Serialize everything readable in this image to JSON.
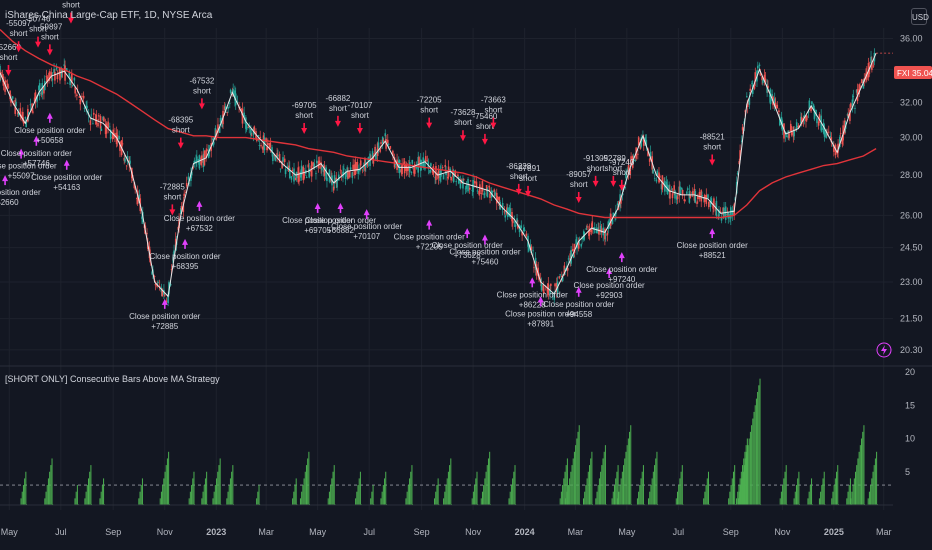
{
  "header": {
    "title": "iShares China Large-Cap ETF, 1D, NYSE Arca",
    "currency": "USD"
  },
  "indicator": {
    "title": "[SHORT ONLY] Consecutive Bars Above MA Strategy"
  },
  "last_price": {
    "symbol": "FXI",
    "value": "35.04"
  },
  "colors": {
    "background": "#131722",
    "up": "#26a69a",
    "down": "#ef5350",
    "ma": "#e0343a",
    "price_line": "#e8e8e8",
    "short_marker": "#ff1744",
    "close_marker": "#e040fb",
    "histogram": "#4caf50",
    "grid": "#1e222d"
  },
  "chart_data": [
    {
      "type": "line",
      "title": "",
      "x": [
        "2022-04-20",
        "2022-05-05",
        "2022-05-20",
        "2022-06-05",
        "2022-06-20",
        "2022-07-05",
        "2022-07-20",
        "2022-08-05",
        "2022-08-20",
        "2022-09-05",
        "2022-09-20",
        "2022-10-05",
        "2022-10-20",
        "2022-11-05",
        "2022-11-20",
        "2022-12-05",
        "2022-12-20",
        "2023-01-05",
        "2023-01-20",
        "2023-02-05",
        "2023-02-20",
        "2023-03-05",
        "2023-03-20",
        "2023-04-05",
        "2023-04-20",
        "2023-05-05",
        "2023-05-20",
        "2023-06-05",
        "2023-06-20",
        "2023-07-05",
        "2023-07-20",
        "2023-08-05",
        "2023-08-20",
        "2023-09-05",
        "2023-09-20",
        "2023-10-05",
        "2023-10-20",
        "2023-11-05",
        "2023-11-20",
        "2023-12-05",
        "2023-12-20",
        "2024-01-05",
        "2024-01-20",
        "2024-02-05",
        "2024-02-20",
        "2024-03-05",
        "2024-03-20",
        "2024-04-05",
        "2024-04-20",
        "2024-05-05",
        "2024-05-20",
        "2024-06-05",
        "2024-06-20",
        "2024-07-05",
        "2024-07-20",
        "2024-08-05",
        "2024-08-20",
        "2024-09-05",
        "2024-09-20",
        "2024-10-05",
        "2024-10-20",
        "2024-11-05",
        "2024-11-20",
        "2024-12-05",
        "2024-12-20",
        "2025-01-05",
        "2025-01-20",
        "2025-02-05",
        "2025-02-20"
      ],
      "series": [
        {
          "values": [
            33.8,
            32.0,
            30.8,
            32.6,
            33.6,
            33.9,
            32.8,
            31.1,
            30.8,
            30.0,
            28.6,
            26.2,
            23.0,
            22.4,
            26.0,
            28.6,
            28.9,
            30.6,
            32.6,
            30.9,
            30.0,
            29.4,
            28.6,
            28.0,
            28.2,
            28.6,
            27.6,
            28.2,
            28.3,
            28.9,
            29.8,
            28.4,
            28.4,
            28.7,
            28.0,
            28.2,
            27.6,
            27.4,
            27.2,
            26.4,
            25.8,
            24.8,
            23.0,
            22.5,
            23.6,
            24.8,
            25.4,
            25.2,
            26.3,
            28.4,
            30.1,
            28.0,
            27.2,
            27.0,
            27.0,
            26.8,
            26.1,
            26.2,
            31.9,
            34.0,
            32.2,
            30.2,
            30.5,
            31.8,
            30.6,
            29.2,
            31.4,
            33.2,
            35.04
          ]
        },
        {
          "values": [
            36.6,
            35.8,
            35.2,
            34.7,
            34.3,
            34.0,
            33.6,
            33.3,
            32.9,
            32.5,
            32.0,
            31.5,
            31.0,
            30.5,
            30.3,
            30.1,
            30.1,
            30.0,
            30.0,
            30.0,
            29.9,
            29.8,
            29.7,
            29.6,
            29.4,
            29.3,
            29.2,
            29.0,
            28.9,
            28.8,
            28.7,
            28.6,
            28.5,
            28.4,
            28.3,
            28.2,
            28.1,
            27.9,
            27.6,
            27.4,
            27.2,
            27.0,
            26.8,
            26.5,
            26.3,
            26.1,
            26.0,
            25.9,
            25.9,
            25.9,
            25.9,
            25.9,
            25.9,
            25.9,
            25.9,
            25.9,
            25.9,
            26.0,
            26.5,
            27.2,
            27.6,
            27.9,
            28.1,
            28.3,
            28.5,
            28.6,
            28.8,
            29.0,
            29.4
          ]
        }
      ],
      "yticks": [
        "36.00",
        "34.00",
        "32.00",
        "30.00",
        "28.00",
        "26.00",
        "24.50",
        "23.00",
        "21.50",
        "20.30"
      ],
      "xticks": [
        "May",
        "Jul",
        "Sep",
        "Nov",
        "2023",
        "Mar",
        "May",
        "Jul",
        "Sep",
        "Nov",
        "2024",
        "Mar",
        "May",
        "Jul",
        "Sep",
        "Nov",
        "2025",
        "Mar"
      ],
      "ylim": [
        20.0,
        36.7
      ]
    },
    {
      "type": "bar",
      "title": "",
      "ylim": [
        0,
        20
      ],
      "yticks": [
        "20",
        "15",
        "10",
        "5"
      ],
      "threshold": 3,
      "peaks": [
        {
          "x": "2022-05-20",
          "v": 5
        },
        {
          "x": "2022-06-20",
          "v": 7
        },
        {
          "x": "2022-07-20",
          "v": 3
        },
        {
          "x": "2022-08-05",
          "v": 6
        },
        {
          "x": "2022-08-20",
          "v": 4
        },
        {
          "x": "2022-10-05",
          "v": 4
        },
        {
          "x": "2022-11-05",
          "v": 8
        },
        {
          "x": "2022-12-05",
          "v": 5
        },
        {
          "x": "2022-12-20",
          "v": 5
        },
        {
          "x": "2023-01-05",
          "v": 7
        },
        {
          "x": "2023-01-20",
          "v": 6
        },
        {
          "x": "2023-02-20",
          "v": 3
        },
        {
          "x": "2023-04-05",
          "v": 4
        },
        {
          "x": "2023-04-20",
          "v": 8
        },
        {
          "x": "2023-05-20",
          "v": 6
        },
        {
          "x": "2023-06-20",
          "v": 5
        },
        {
          "x": "2023-07-05",
          "v": 3
        },
        {
          "x": "2023-07-20",
          "v": 5
        },
        {
          "x": "2023-08-20",
          "v": 6
        },
        {
          "x": "2023-09-20",
          "v": 4
        },
        {
          "x": "2023-10-05",
          "v": 7
        },
        {
          "x": "2023-11-05",
          "v": 5
        },
        {
          "x": "2023-11-20",
          "v": 8
        },
        {
          "x": "2023-12-20",
          "v": 6
        },
        {
          "x": "2024-02-20",
          "v": 7
        },
        {
          "x": "2024-03-05",
          "v": 12
        },
        {
          "x": "2024-03-20",
          "v": 8
        },
        {
          "x": "2024-04-05",
          "v": 9
        },
        {
          "x": "2024-04-20",
          "v": 6
        },
        {
          "x": "2024-05-05",
          "v": 12
        },
        {
          "x": "2024-05-20",
          "v": 6
        },
        {
          "x": "2024-06-05",
          "v": 8
        },
        {
          "x": "2024-07-05",
          "v": 6
        },
        {
          "x": "2024-08-05",
          "v": 5
        },
        {
          "x": "2024-09-05",
          "v": 6
        },
        {
          "x": "2024-09-20",
          "v": 10
        },
        {
          "x": "2024-10-05",
          "v": 19
        },
        {
          "x": "2024-11-05",
          "v": 6
        },
        {
          "x": "2024-11-20",
          "v": 5
        },
        {
          "x": "2024-12-05",
          "v": 4
        },
        {
          "x": "2024-12-20",
          "v": 5
        },
        {
          "x": "2025-01-05",
          "v": 6
        },
        {
          "x": "2025-01-20",
          "v": 4
        },
        {
          "x": "2025-02-05",
          "v": 12
        },
        {
          "x": "2025-02-20",
          "v": 8
        }
      ]
    }
  ],
  "signals": [
    {
      "x": "2022-04-30",
      "y": 33.6,
      "kind": "short",
      "label": "-52660",
      "sub": "short"
    },
    {
      "x": "2022-05-12",
      "y": 35.1,
      "kind": "short",
      "label": "-55097",
      "sub": "short"
    },
    {
      "x": "2022-06-04",
      "y": 35.4,
      "kind": "short",
      "label": "-50746",
      "sub": "short"
    },
    {
      "x": "2022-06-18",
      "y": 34.9,
      "kind": "short",
      "label": "-59897",
      "sub": "short"
    },
    {
      "x": "2022-07-13",
      "y": 37.0,
      "kind": "short",
      "label": "-50658",
      "sub": "short"
    },
    {
      "x": "2022-11-20",
      "y": 29.4,
      "kind": "short",
      "label": "-68395",
      "sub": "short"
    },
    {
      "x": "2022-11-10",
      "y": 26.0,
      "kind": "short",
      "label": "-72885",
      "sub": "short"
    },
    {
      "x": "2022-12-15",
      "y": 31.6,
      "kind": "short",
      "label": "-67532",
      "sub": "short"
    },
    {
      "x": "2023-04-15",
      "y": 30.2,
      "kind": "short",
      "label": "-69705",
      "sub": "short"
    },
    {
      "x": "2023-05-25",
      "y": 30.6,
      "kind": "short",
      "label": "-66882",
      "sub": "short"
    },
    {
      "x": "2023-06-20",
      "y": 30.2,
      "kind": "short",
      "label": "-70107",
      "sub": "short"
    },
    {
      "x": "2023-09-10",
      "y": 30.5,
      "kind": "short",
      "label": "-72205",
      "sub": "short"
    },
    {
      "x": "2023-10-20",
      "y": 29.8,
      "kind": "short",
      "label": "-73628",
      "sub": "short"
    },
    {
      "x": "2023-11-15",
      "y": 29.6,
      "kind": "short",
      "label": "-75460",
      "sub": "short"
    },
    {
      "x": "2023-11-25",
      "y": 30.5,
      "kind": "short",
      "label": "-73663",
      "sub": "short"
    },
    {
      "x": "2023-12-25",
      "y": 27.0,
      "kind": "short",
      "label": "-86228",
      "sub": "short"
    },
    {
      "x": "2024-01-05",
      "y": 26.9,
      "kind": "short",
      "label": "-87891",
      "sub": "short"
    },
    {
      "x": "2024-03-05",
      "y": 26.6,
      "kind": "short",
      "label": "-89057",
      "sub": "short"
    },
    {
      "x": "2024-03-25",
      "y": 27.4,
      "kind": "short",
      "label": "-91305",
      "sub": "short"
    },
    {
      "x": "2024-04-15",
      "y": 27.4,
      "kind": "short",
      "label": "-92789",
      "sub": "short"
    },
    {
      "x": "2024-04-25",
      "y": 27.2,
      "kind": "short",
      "label": "-97240",
      "sub": "short"
    },
    {
      "x": "2024-08-10",
      "y": 28.5,
      "kind": "short",
      "label": "-88521",
      "sub": "short"
    },
    {
      "x": "2022-04-26",
      "y": 28.0,
      "kind": "close",
      "label": "Close position order",
      "sub": "+52660"
    },
    {
      "x": "2022-05-15",
      "y": 29.4,
      "kind": "close",
      "label": "Close position order",
      "sub": "+55097"
    },
    {
      "x": "2022-06-02",
      "y": 30.1,
      "kind": "close",
      "label": "Close position order",
      "sub": "+57746"
    },
    {
      "x": "2022-06-18",
      "y": 31.4,
      "kind": "close",
      "label": "Close position order",
      "sub": "+50658"
    },
    {
      "x": "2022-07-08",
      "y": 28.8,
      "kind": "close",
      "label": "Close position order",
      "sub": "+54163"
    },
    {
      "x": "2022-11-01",
      "y": 22.3,
      "kind": "close",
      "label": "Close position order",
      "sub": "+72885"
    },
    {
      "x": "2022-11-25",
      "y": 24.9,
      "kind": "close",
      "label": "Close position order",
      "sub": "+68395"
    },
    {
      "x": "2022-12-12",
      "y": 26.7,
      "kind": "close",
      "label": "Close position order",
      "sub": "+67532"
    },
    {
      "x": "2023-05-01",
      "y": 26.6,
      "kind": "close",
      "label": "Close position order",
      "sub": "+69705"
    },
    {
      "x": "2023-05-28",
      "y": 26.6,
      "kind": "close",
      "label": "Close position order",
      "sub": "+66882"
    },
    {
      "x": "2023-06-28",
      "y": 26.3,
      "kind": "close",
      "label": "Close position order",
      "sub": "+70107"
    },
    {
      "x": "2023-09-10",
      "y": 25.8,
      "kind": "close",
      "label": "Close position order",
      "sub": "+72205"
    },
    {
      "x": "2023-10-25",
      "y": 25.4,
      "kind": "close",
      "label": "Close position order",
      "sub": "+73628"
    },
    {
      "x": "2023-11-15",
      "y": 25.1,
      "kind": "close",
      "label": "Close position order",
      "sub": "+75460"
    },
    {
      "x": "2024-01-10",
      "y": 23.2,
      "kind": "close",
      "label": "Close position order",
      "sub": "+86228"
    },
    {
      "x": "2024-01-20",
      "y": 22.4,
      "kind": "close",
      "label": "Close position order",
      "sub": "+87891"
    },
    {
      "x": "2024-03-05",
      "y": 22.8,
      "kind": "close",
      "label": "Close position order",
      "sub": "+94558"
    },
    {
      "x": "2024-04-10",
      "y": 23.6,
      "kind": "close",
      "label": "Close position order",
      "sub": "+92903"
    },
    {
      "x": "2024-04-25",
      "y": 24.3,
      "kind": "close",
      "label": "Close position order",
      "sub": "+97240"
    },
    {
      "x": "2024-08-10",
      "y": 25.4,
      "kind": "close",
      "label": "Close position order",
      "sub": "+88521"
    }
  ]
}
